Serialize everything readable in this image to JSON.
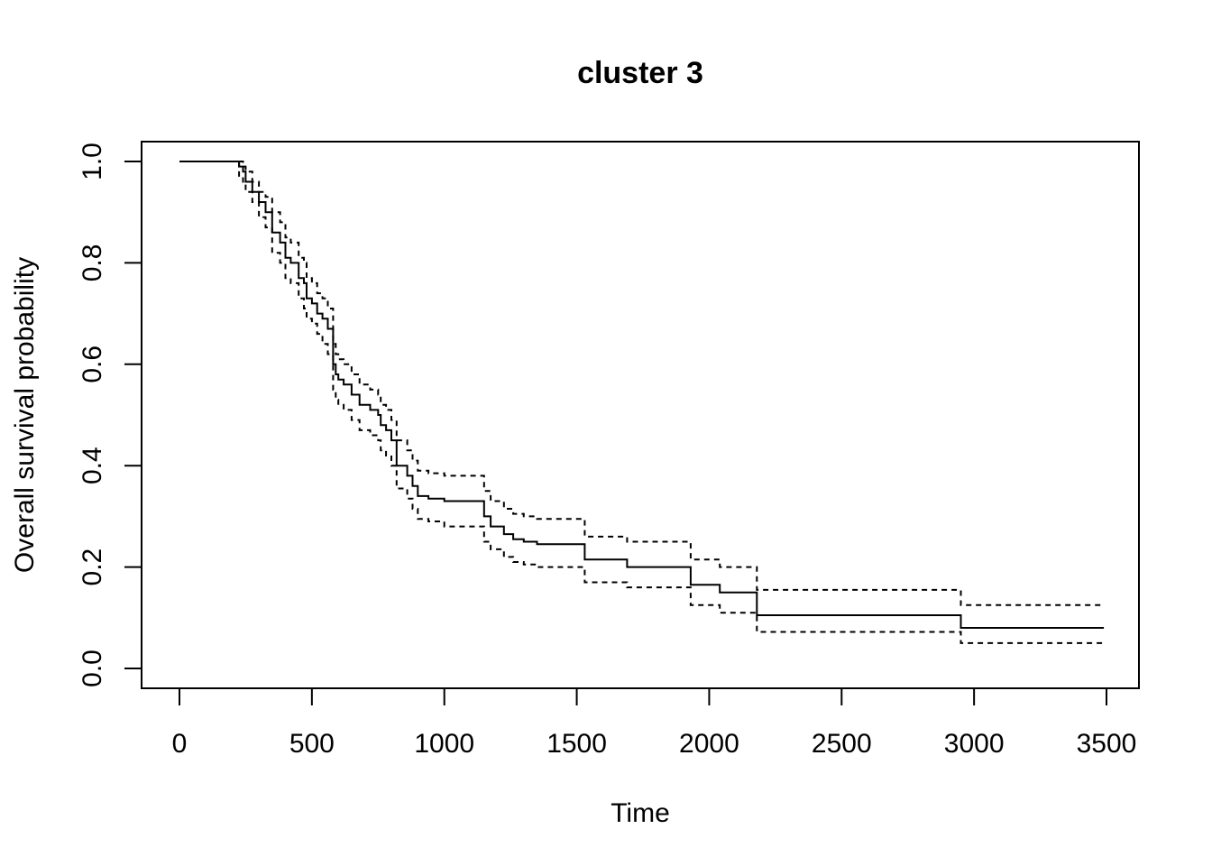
{
  "chart_data": {
    "type": "line",
    "title": "cluster 3",
    "xlabel": "Time",
    "ylabel": "Overall survival probability",
    "xlim": [
      0,
      3500
    ],
    "ylim": [
      0.0,
      1.0
    ],
    "x_ticks": [
      0,
      500,
      1000,
      1500,
      2000,
      2500,
      3000,
      3500
    ],
    "y_ticks": [
      0.0,
      0.2,
      0.4,
      0.6,
      0.8,
      1.0
    ],
    "x_tick_labels": [
      "0",
      "500",
      "1000",
      "1500",
      "2000",
      "2500",
      "3000",
      "3500"
    ],
    "y_tick_labels": [
      "0.0",
      "0.2",
      "0.4",
      "0.6",
      "0.8",
      "1.0"
    ],
    "grid": false,
    "legend": "none",
    "step": true,
    "colors": {
      "line": "#000000"
    },
    "series": [
      {
        "style": "solid",
        "x": [
          0,
          225,
          240,
          250,
          275,
          300,
          325,
          350,
          380,
          400,
          420,
          450,
          470,
          480,
          500,
          520,
          540,
          560,
          580,
          590,
          600,
          620,
          650,
          680,
          720,
          750,
          760,
          780,
          800,
          820,
          860,
          880,
          900,
          940,
          1000,
          1150,
          1175,
          1225,
          1260,
          1300,
          1350,
          1530,
          1690,
          1930,
          2040,
          2180,
          2950,
          3490
        ],
        "y": [
          1.0,
          0.99,
          0.98,
          0.96,
          0.94,
          0.92,
          0.9,
          0.86,
          0.84,
          0.81,
          0.8,
          0.77,
          0.76,
          0.73,
          0.72,
          0.7,
          0.69,
          0.67,
          0.6,
          0.58,
          0.57,
          0.56,
          0.54,
          0.52,
          0.51,
          0.5,
          0.48,
          0.47,
          0.45,
          0.4,
          0.38,
          0.36,
          0.34,
          0.335,
          0.33,
          0.3,
          0.28,
          0.265,
          0.255,
          0.25,
          0.245,
          0.215,
          0.2,
          0.165,
          0.15,
          0.105,
          0.08,
          0.08
        ]
      },
      {
        "style": "dashed",
        "x": [
          0,
          225,
          240,
          250,
          275,
          300,
          325,
          350,
          380,
          400,
          420,
          450,
          470,
          480,
          500,
          520,
          540,
          560,
          580,
          590,
          600,
          620,
          650,
          680,
          720,
          750,
          760,
          780,
          800,
          820,
          860,
          880,
          900,
          940,
          1000,
          1150,
          1175,
          1225,
          1260,
          1300,
          1350,
          1530,
          1690,
          1930,
          2040,
          2180,
          2950,
          3490
        ],
        "y": [
          1.0,
          1.0,
          0.99,
          0.98,
          0.96,
          0.94,
          0.93,
          0.9,
          0.88,
          0.85,
          0.84,
          0.81,
          0.8,
          0.77,
          0.76,
          0.74,
          0.73,
          0.71,
          0.64,
          0.62,
          0.61,
          0.6,
          0.58,
          0.56,
          0.55,
          0.54,
          0.52,
          0.51,
          0.49,
          0.45,
          0.43,
          0.41,
          0.39,
          0.385,
          0.38,
          0.35,
          0.33,
          0.315,
          0.305,
          0.3,
          0.295,
          0.26,
          0.25,
          0.215,
          0.2,
          0.155,
          0.125,
          0.125
        ]
      },
      {
        "style": "dashed",
        "x": [
          0,
          225,
          240,
          250,
          275,
          300,
          325,
          350,
          380,
          400,
          420,
          450,
          470,
          480,
          500,
          520,
          540,
          560,
          580,
          590,
          600,
          620,
          650,
          680,
          720,
          750,
          760,
          780,
          800,
          820,
          860,
          880,
          900,
          940,
          1000,
          1150,
          1175,
          1225,
          1260,
          1300,
          1350,
          1530,
          1690,
          1930,
          2040,
          2180,
          2950,
          3490
        ],
        "y": [
          1.0,
          0.97,
          0.96,
          0.94,
          0.92,
          0.89,
          0.87,
          0.82,
          0.8,
          0.77,
          0.76,
          0.73,
          0.71,
          0.69,
          0.68,
          0.66,
          0.64,
          0.62,
          0.55,
          0.53,
          0.52,
          0.51,
          0.49,
          0.47,
          0.46,
          0.45,
          0.43,
          0.42,
          0.4,
          0.355,
          0.335,
          0.315,
          0.295,
          0.29,
          0.28,
          0.25,
          0.235,
          0.22,
          0.21,
          0.205,
          0.2,
          0.17,
          0.16,
          0.125,
          0.11,
          0.072,
          0.05,
          0.05
        ]
      }
    ]
  }
}
